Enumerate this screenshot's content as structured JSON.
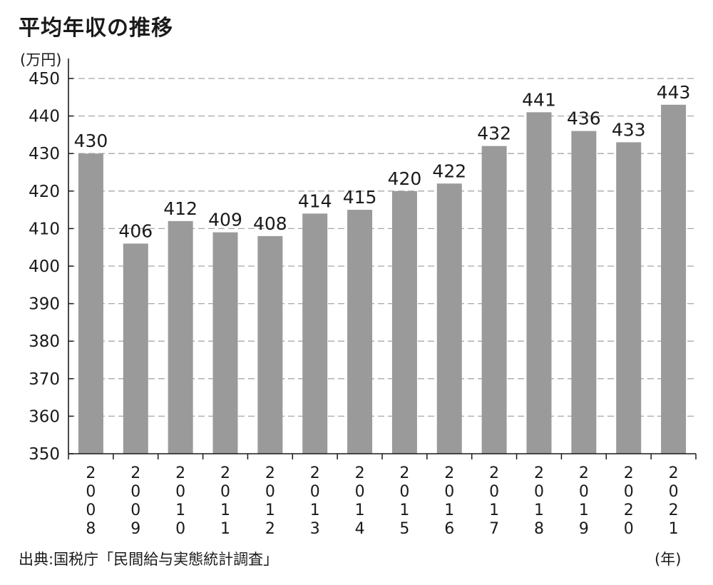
{
  "chart_data": {
    "type": "bar",
    "title": "平均年収の推移",
    "ylabel": "(万円)",
    "xlabel": "(年)",
    "ylim": [
      350,
      450
    ],
    "yticks": [
      350,
      360,
      370,
      380,
      390,
      400,
      410,
      420,
      430,
      440,
      450
    ],
    "grid": true,
    "categories": [
      "2008",
      "2009",
      "2010",
      "2011",
      "2012",
      "2013",
      "2014",
      "2015",
      "2016",
      "2017",
      "2018",
      "2019",
      "2020",
      "2021"
    ],
    "values": [
      430,
      406,
      412,
      409,
      408,
      414,
      415,
      420,
      422,
      432,
      441,
      436,
      433,
      443
    ],
    "bar_color": "#9a9a9b",
    "grid_color": "#a8a8a8",
    "source": "出典:国税庁「民間給与実態統計調査」"
  }
}
